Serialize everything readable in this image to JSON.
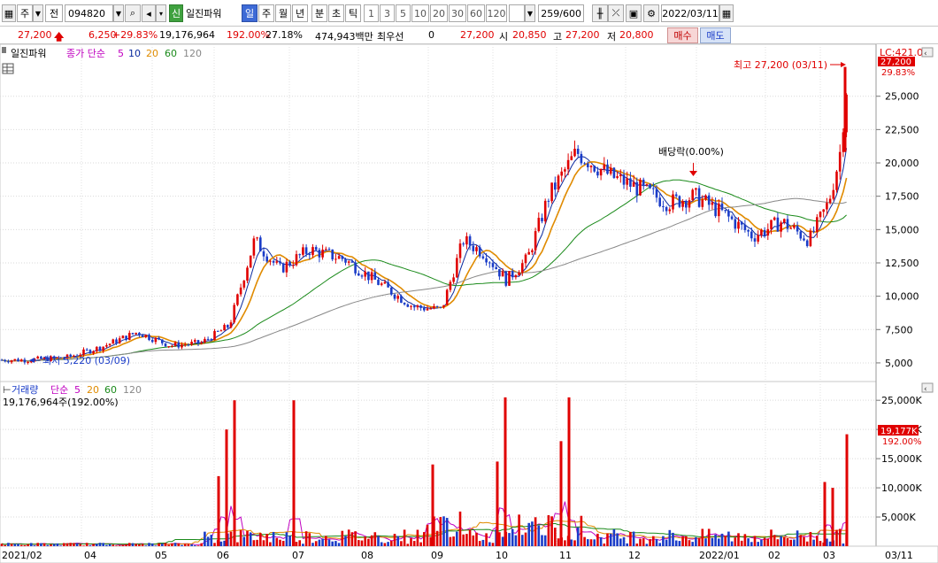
{
  "toolbar": {
    "market": "주",
    "mode": "전",
    "code": "094820",
    "new_badge": "신",
    "stock_name": "일진파워",
    "periods": [
      "일",
      "주",
      "월",
      "년",
      "분",
      "초",
      "틱"
    ],
    "active_period": "일",
    "intervals": [
      "1",
      "3",
      "5",
      "10",
      "20",
      "30",
      "60",
      "120"
    ],
    "count": "259",
    "count_total": "/600",
    "date": "2022/03/11"
  },
  "quote": {
    "price": "27,200",
    "change": "6,250",
    "change_pct": "+29.83%",
    "volume": "19,176,964",
    "volume_ratio": "192.00%",
    "turnover": "27.18%",
    "amount": "474,943백만",
    "pref_label": "최우선",
    "pref_value": "0",
    "ask": "27,200",
    "open_label": "시",
    "open": "20,850",
    "high_label": "고",
    "high": "27,200",
    "low_label": "저",
    "low": "20,800",
    "buy_label": "매수",
    "sell_label": "매도"
  },
  "price_panel": {
    "name": "일진파워",
    "ma_label": "종가 단순",
    "ma_periods": [
      "5",
      "10",
      "20",
      "60",
      "120"
    ],
    "ma_colors": [
      "#0b2a9e",
      "#e08b00",
      "#1a8a1a",
      "#888888",
      "#888888"
    ],
    "lc_label": "LC:421.07",
    "last_price_tag": "27,200",
    "last_pct_tag": "29.83%",
    "high_annotation": "최고 27,200 (03/11)",
    "low_annotation": "최저 5,220 (03/09)",
    "dividend_annotation": "배당락(0.00%)",
    "y_ticks": [
      "25,000",
      "22,500",
      "20,000",
      "17,500",
      "15,000",
      "12,500",
      "10,000",
      "7,500",
      "5,000"
    ]
  },
  "volume_panel": {
    "name": "거래량",
    "ma_label": "단순",
    "ma_periods": [
      "5",
      "20",
      "60",
      "120"
    ],
    "summary": "19,176,964주(192.00%)",
    "last_volume_tag": "19,177K",
    "last_pct_tag": "192.00%",
    "y_ticks": [
      "25,000K",
      "20,000K",
      "15,000K",
      "10,000K",
      "5,000K"
    ]
  },
  "x_axis": [
    "2021/02",
    "04",
    "05",
    "06",
    "07",
    "08",
    "09",
    "10",
    "11",
    "12",
    "2022/01",
    "02",
    "03",
    "03/11"
  ],
  "chart_data": {
    "type": "candlestick",
    "price_ylim": [
      4000,
      28500
    ],
    "price_points": [
      [
        "2021/02",
        5220
      ],
      [
        "2021/03",
        5400
      ],
      [
        "2021/04",
        6200
      ],
      [
        "2021/04",
        7300
      ],
      [
        "2021/05",
        6300
      ],
      [
        "2021/05",
        6500
      ],
      [
        "2021/06",
        7800
      ],
      [
        "2021/06",
        14200
      ],
      [
        "2021/06",
        12000
      ],
      [
        "2021/07",
        13500
      ],
      [
        "2021/07",
        12800
      ],
      [
        "2021/08",
        11000
      ],
      [
        "2021/08",
        9200
      ],
      [
        "2021/09",
        9000
      ],
      [
        "2021/09",
        14200
      ],
      [
        "2021/09",
        13200
      ],
      [
        "2021/10",
        11200
      ],
      [
        "2021/10",
        12800
      ],
      [
        "2021/10",
        17500
      ],
      [
        "2021/11",
        20800
      ],
      [
        "2021/11",
        19000
      ],
      [
        "2021/12",
        18000
      ],
      [
        "2021/12",
        17000
      ],
      [
        "2021/12",
        17500
      ],
      [
        "2022/01",
        16200
      ],
      [
        "2022/01",
        14500
      ],
      [
        "2022/02",
        15600
      ],
      [
        "2022/02",
        14200
      ],
      [
        "2022/03",
        17000
      ],
      [
        "2022/03",
        20500
      ],
      [
        "2022/03/11",
        27200
      ]
    ],
    "volume_ylim_k": [
      0,
      27000
    ],
    "volume_bars_k": [
      [
        "2021/06",
        12000
      ],
      [
        "2021/06",
        20000
      ],
      [
        "2021/06",
        25000
      ],
      [
        "2021/07",
        25000
      ],
      [
        "2021/09",
        14000
      ],
      [
        "2021/10",
        14500
      ],
      [
        "2021/10",
        25500
      ],
      [
        "2021/11",
        18000
      ],
      [
        "2021/11",
        25500
      ],
      [
        "2022/03",
        11000
      ],
      [
        "2022/03",
        10000
      ],
      [
        "2022/03/11",
        19177
      ]
    ]
  }
}
